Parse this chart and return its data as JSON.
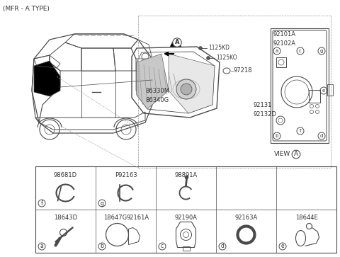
{
  "title": "(MFR - A TYPE)",
  "bg_color": "#ffffff",
  "line_color": "#4a4a4a",
  "text_color": "#333333",
  "fig_width": 4.8,
  "fig_height": 3.63,
  "dpi": 100,
  "parts": {
    "screw1": "1125KD",
    "screw2": "1125KO",
    "label_tl": "86330M\n86340G",
    "label_tr1": "92101A\n92102A",
    "label_tr2": "97218",
    "label_tr3": "92131\n92132D",
    "view_label": "VIEW",
    "cells_row1": [
      {
        "circle": "a",
        "parts": [
          "18643D"
        ]
      },
      {
        "circle": "b",
        "parts": [
          "18647G",
          "92161A"
        ]
      },
      {
        "circle": "c",
        "parts": [
          "92190A"
        ]
      },
      {
        "circle": "d",
        "parts": [
          "92163A"
        ]
      },
      {
        "circle": "e",
        "parts": [
          "18644E"
        ]
      }
    ],
    "cells_row2": [
      {
        "circle": "f",
        "parts": [
          "98681D"
        ]
      },
      {
        "circle": "g",
        "parts": [
          "P92163"
        ]
      },
      {
        "circle": "",
        "parts": [
          "98891A"
        ]
      }
    ]
  }
}
